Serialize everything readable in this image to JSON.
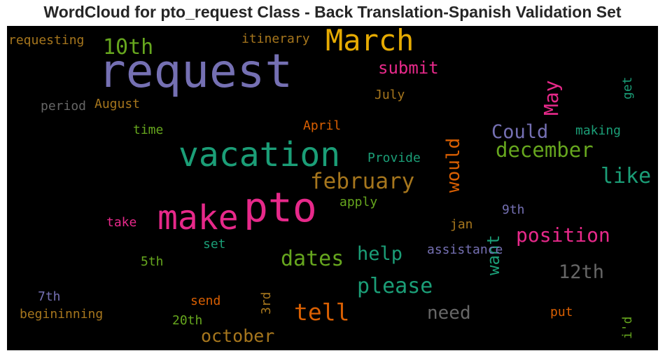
{
  "title": "WordCloud for pto_request Class - Back Translation-Spanish Validation Set",
  "palette": {
    "purple": "#7570b3",
    "pink": "#e7298a",
    "teal": "#1b9e77",
    "orange": "#d95f02",
    "olive": "#66a61e",
    "gold": "#e6ab02",
    "brown": "#a6761d",
    "gray": "#666666"
  },
  "words": [
    {
      "text": "request",
      "color": "#7570b3"
    },
    {
      "text": "pto",
      "color": "#e7298a"
    },
    {
      "text": "vacation",
      "color": "#1b9e77"
    },
    {
      "text": "make",
      "color": "#e7298a"
    },
    {
      "text": "March",
      "color": "#e6ab02"
    },
    {
      "text": "february",
      "color": "#a6761d"
    },
    {
      "text": "december",
      "color": "#66a61e"
    },
    {
      "text": "tell",
      "color": "#d95f02"
    },
    {
      "text": "please",
      "color": "#1b9e77"
    },
    {
      "text": "dates",
      "color": "#66a61e"
    },
    {
      "text": "like",
      "color": "#1b9e77"
    },
    {
      "text": "position",
      "color": "#e7298a"
    },
    {
      "text": "Could",
      "color": "#7570b3"
    },
    {
      "text": "10th",
      "color": "#66a61e"
    },
    {
      "text": "May",
      "color": "#e7298a"
    },
    {
      "text": "would",
      "color": "#d95f02"
    },
    {
      "text": "submit",
      "color": "#e7298a"
    },
    {
      "text": "help",
      "color": "#1b9e77"
    },
    {
      "text": "need",
      "color": "#666666"
    },
    {
      "text": "12th",
      "color": "#666666"
    },
    {
      "text": "october",
      "color": "#a6761d"
    },
    {
      "text": "want",
      "color": "#1b9e77"
    },
    {
      "text": "requesting",
      "color": "#a6761d"
    },
    {
      "text": "itinerary",
      "color": "#a6761d"
    },
    {
      "text": "get",
      "color": "#1b9e77"
    },
    {
      "text": "July",
      "color": "#a6761d"
    },
    {
      "text": "period",
      "color": "#666666"
    },
    {
      "text": "August",
      "color": "#a6761d"
    },
    {
      "text": "time",
      "color": "#66a61e"
    },
    {
      "text": "April",
      "color": "#d95f02"
    },
    {
      "text": "making",
      "color": "#1b9e77"
    },
    {
      "text": "Provide",
      "color": "#1b9e77"
    },
    {
      "text": "apply",
      "color": "#66a61e"
    },
    {
      "text": "9th",
      "color": "#7570b3"
    },
    {
      "text": "take",
      "color": "#e7298a"
    },
    {
      "text": "jan",
      "color": "#a6761d"
    },
    {
      "text": "set",
      "color": "#1b9e77"
    },
    {
      "text": "assistance",
      "color": "#7570b3"
    },
    {
      "text": "5th",
      "color": "#66a61e"
    },
    {
      "text": "3rd",
      "color": "#a6761d"
    },
    {
      "text": "7th",
      "color": "#7570b3"
    },
    {
      "text": "send",
      "color": "#d95f02"
    },
    {
      "text": "put",
      "color": "#d95f02"
    },
    {
      "text": "i'd",
      "color": "#66a61e"
    },
    {
      "text": "begininning",
      "color": "#a6761d"
    },
    {
      "text": "20th",
      "color": "#66a61e"
    }
  ]
}
